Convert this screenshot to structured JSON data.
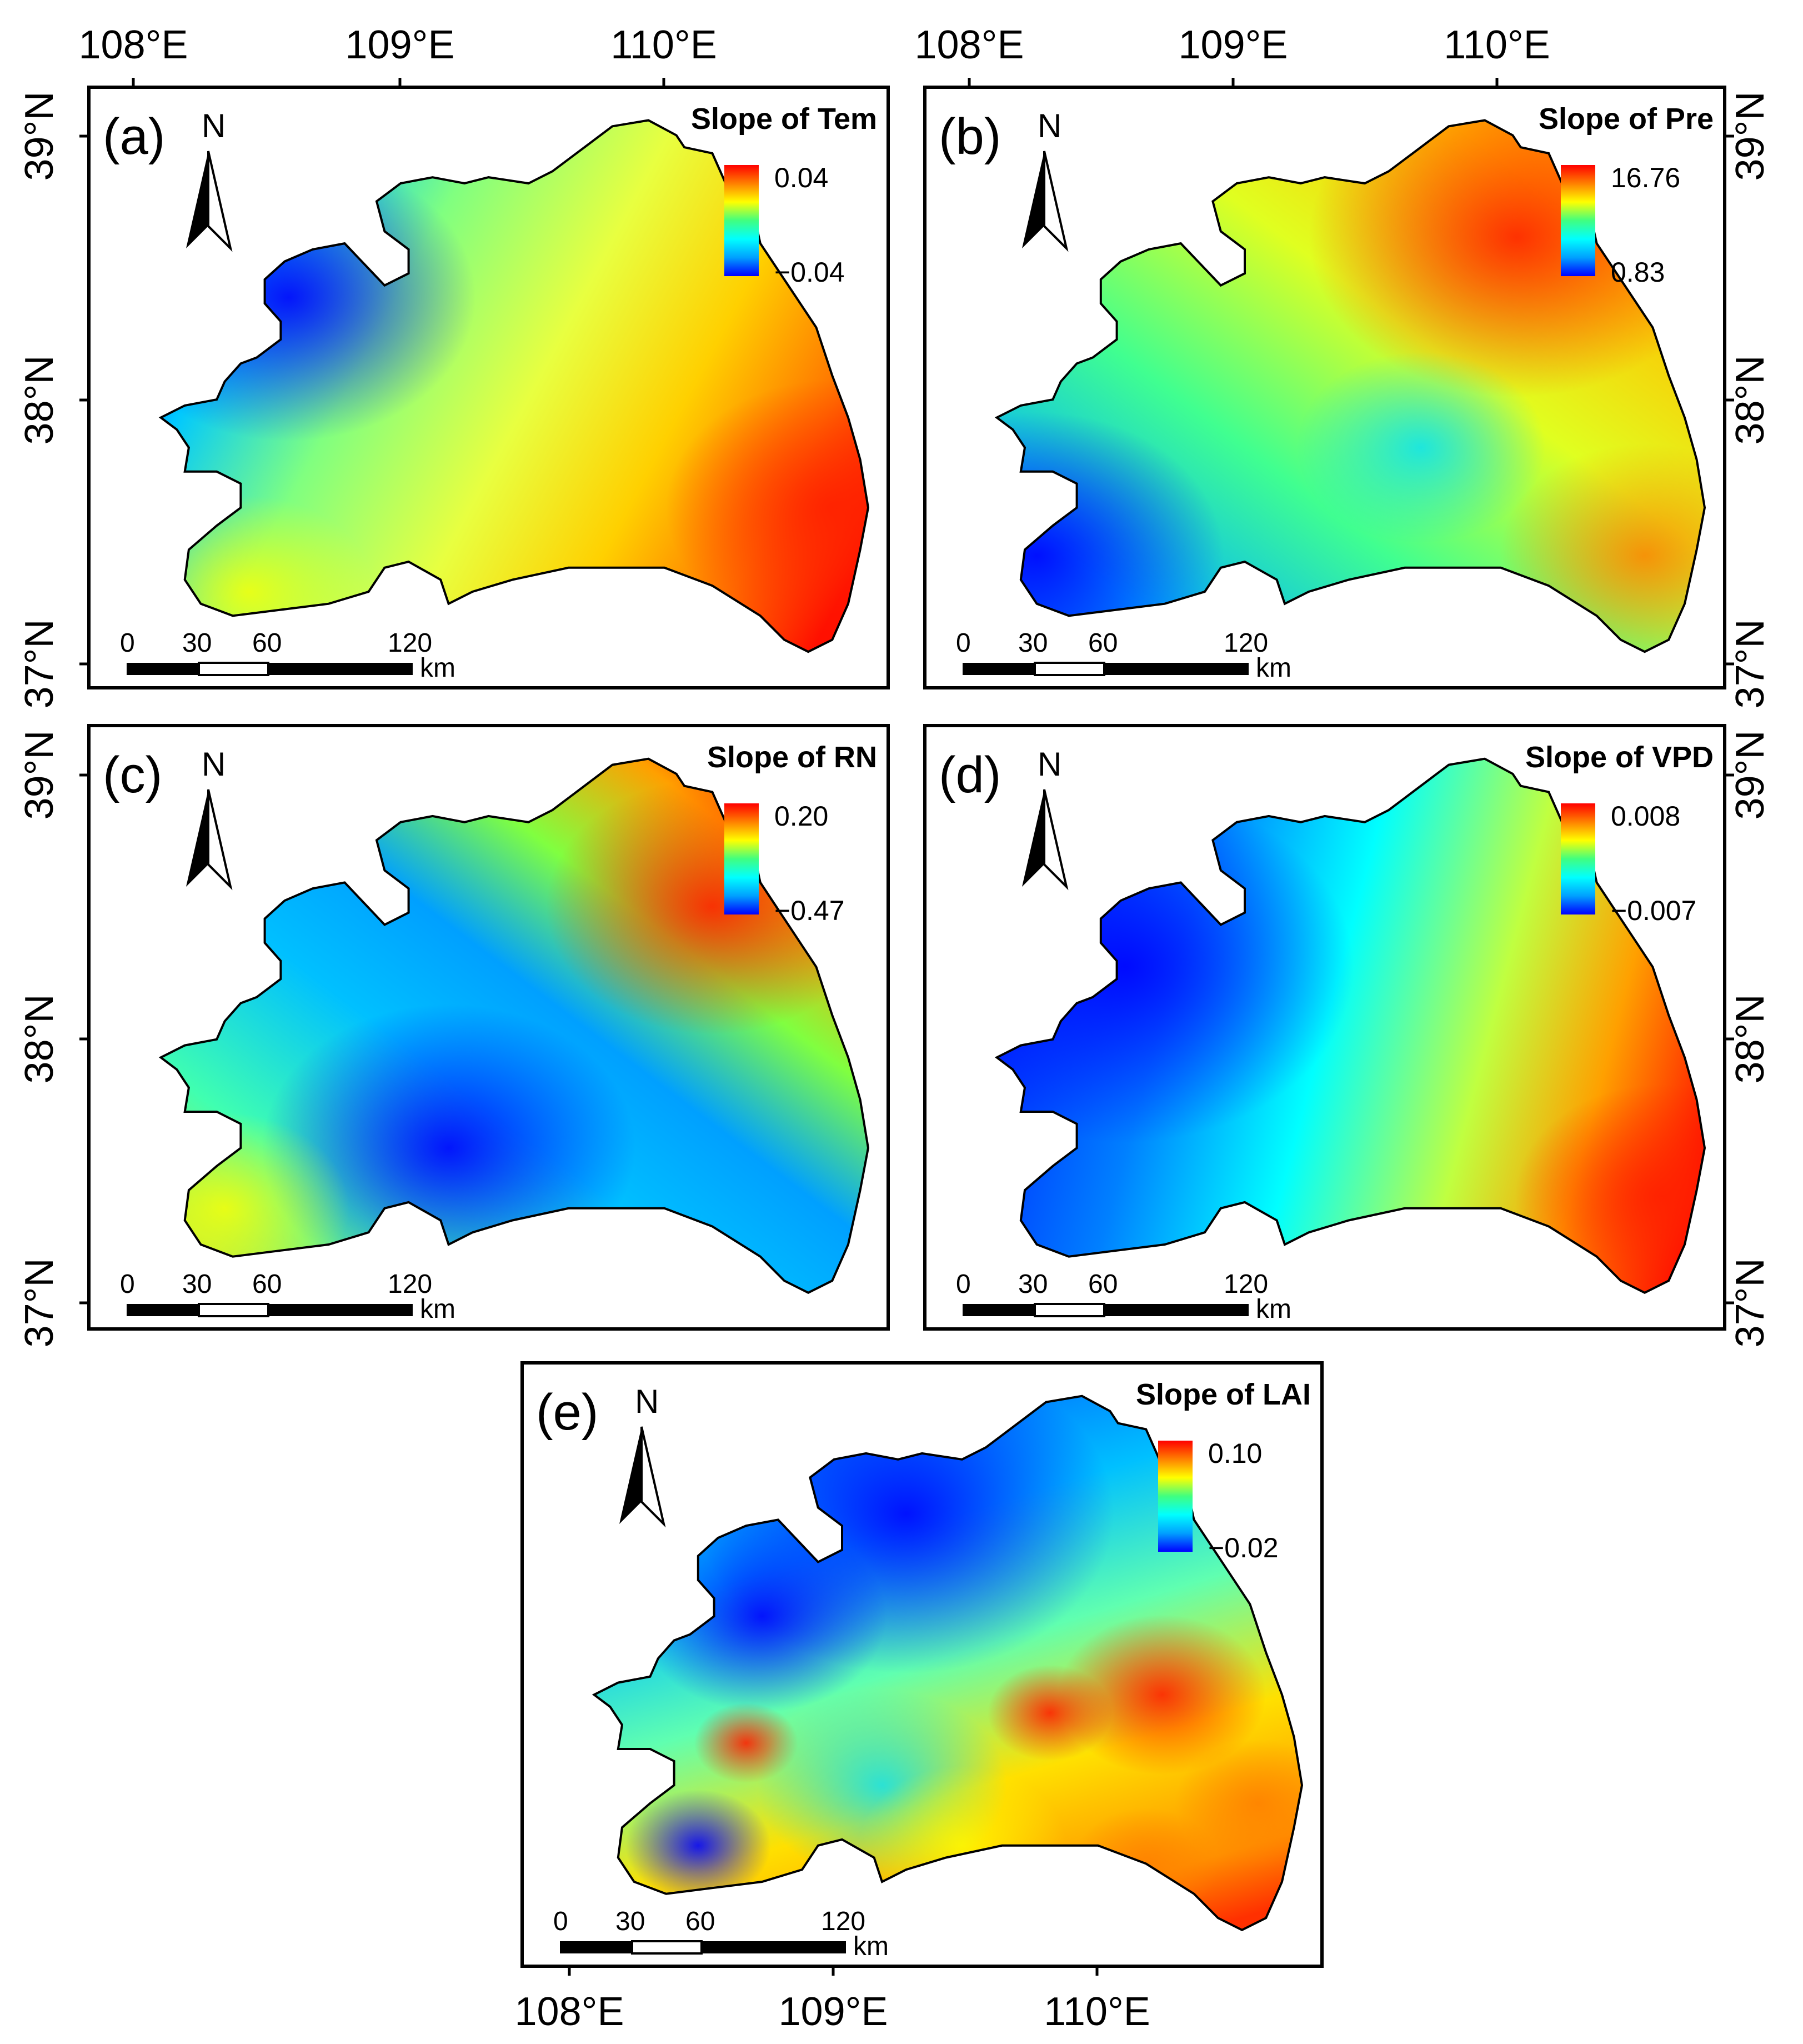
{
  "figure": {
    "axis_labels": {
      "lon_top": [
        "108°E",
        "109°E",
        "110°E"
      ],
      "lat_left": [
        "39°N",
        "38°N",
        "37°N"
      ],
      "lat_right": [
        "39°N",
        "38°N",
        "37°N"
      ],
      "lon_bottom": [
        "108°E",
        "109°E",
        "110°E"
      ]
    },
    "panels": [
      {
        "id": "a",
        "label": "(a)",
        "north": "N",
        "legend_title": "Slope of Tem",
        "legend_max": "0.04",
        "legend_min": "−0.04",
        "pattern": "tem",
        "scale": {
          "t0": "0",
          "t30": "30",
          "t60": "60",
          "t120": "120",
          "unit": "km"
        }
      },
      {
        "id": "b",
        "label": "(b)",
        "north": "N",
        "legend_title": "Slope of Pre",
        "legend_max": "16.76",
        "legend_min": "0.83",
        "pattern": "pre",
        "scale": {
          "t0": "0",
          "t30": "30",
          "t60": "60",
          "t120": "120",
          "unit": "km"
        }
      },
      {
        "id": "c",
        "label": "(c)",
        "north": "N",
        "legend_title": "Slope of RN",
        "legend_max": "0.20",
        "legend_min": "−0.47",
        "pattern": "rn",
        "scale": {
          "t0": "0",
          "t30": "30",
          "t60": "60",
          "t120": "120",
          "unit": "km"
        }
      },
      {
        "id": "d",
        "label": "(d)",
        "north": "N",
        "legend_title": "Slope of VPD",
        "legend_max": "0.008",
        "legend_min": "−0.007",
        "pattern": "vpd",
        "scale": {
          "t0": "0",
          "t30": "30",
          "t60": "60",
          "t120": "120",
          "unit": "km"
        }
      },
      {
        "id": "e",
        "label": "(e)",
        "north": "N",
        "legend_title": "Slope of LAI",
        "legend_max": "0.10",
        "legend_min": "−0.02",
        "pattern": "lai",
        "scale": {
          "t0": "0",
          "t30": "30",
          "t60": "60",
          "t120": "120",
          "unit": "km"
        }
      }
    ],
    "colormap": [
      "#0000ff",
      "#00a0ff",
      "#00ffff",
      "#40ff80",
      "#ffff00",
      "#ff8000",
      "#ff0000"
    ]
  }
}
